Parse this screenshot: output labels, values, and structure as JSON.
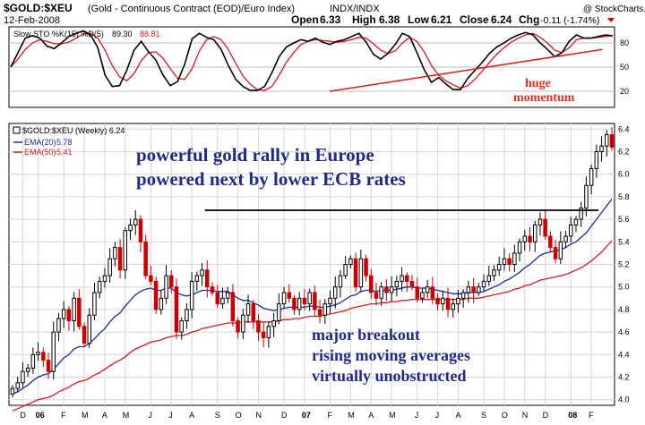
{
  "header": {
    "symbol": "$GOLD:$XEU",
    "description": "(Gold - Continuous Contract (EOD)/Euro Index)",
    "exchange": "INDX/INDX",
    "date": "12-Feb-2008",
    "open_label": "Open",
    "open": "6.33",
    "high_label": "High",
    "high": "6.38",
    "low_label": "Low",
    "low": "6.21",
    "close_label": "Close",
    "close": "6.24",
    "chg_label": "Chg",
    "chg": "-0.11 (-1.74%)",
    "watermark": "@ StockCharts.com"
  },
  "colors": {
    "up": "#000000",
    "down": "#cc0000",
    "ema20": "#1c2aa0",
    "ema50": "#e01818",
    "annotation_blue": "#1f2a8c",
    "annotation_red": "#e03020",
    "grid": "#d6d6d6",
    "sto_d": "#e01818"
  },
  "chart_data": [
    {
      "type": "line",
      "title": "Slow STO %K(15) %D(5)",
      "legend": [
        {
          "name": "Slow STO %K(15) %D(5)",
          "value": "89.30",
          "color": "#000000"
        },
        {
          "name": "%D",
          "value": "88.81",
          "color": "#e01818"
        }
      ],
      "ylim": [
        0,
        100
      ],
      "yticks": [
        20,
        50,
        80
      ],
      "reference_lines": [
        20,
        50,
        80
      ],
      "trendline": {
        "from": [
          62,
          20
        ],
        "to": [
          115,
          72
        ],
        "color": "#e01818"
      },
      "annotation": [
        "huge",
        "momentum"
      ],
      "series": [
        {
          "name": "%K",
          "values": [
            50,
            68,
            86,
            89,
            86,
            76,
            73,
            80,
            88,
            92,
            95,
            90,
            74,
            40,
            26,
            27,
            46,
            71,
            82,
            69,
            59,
            40,
            27,
            32,
            54,
            85,
            92,
            87,
            84,
            72,
            52,
            35,
            26,
            21,
            21,
            26,
            43,
            63,
            75,
            80,
            84,
            82,
            86,
            81,
            78,
            82,
            84,
            88,
            92,
            81,
            66,
            60,
            67,
            78,
            92,
            88,
            68,
            47,
            31,
            37,
            29,
            22,
            22,
            36,
            46,
            56,
            67,
            75,
            80,
            86,
            90,
            93,
            90,
            80,
            72,
            63,
            68,
            82,
            90,
            86,
            86,
            88,
            90,
            89
          ]
        },
        {
          "name": "%D",
          "values": [
            50,
            60,
            72,
            80,
            84,
            82,
            79,
            79,
            81,
            86,
            91,
            92,
            86,
            71,
            52,
            38,
            33,
            42,
            58,
            68,
            69,
            61,
            48,
            36,
            35,
            48,
            70,
            84,
            88,
            84,
            72,
            55,
            39,
            29,
            22,
            21,
            26,
            40,
            56,
            68,
            78,
            82,
            84,
            83,
            82,
            81,
            82,
            84,
            87,
            86,
            79,
            71,
            67,
            70,
            80,
            87,
            82,
            69,
            52,
            40,
            33,
            28,
            24,
            27,
            35,
            45,
            56,
            66,
            74,
            81,
            86,
            90,
            92,
            87,
            80,
            71,
            68,
            74,
            84,
            86,
            86,
            87,
            88,
            89
          ]
        }
      ]
    },
    {
      "type": "candlestick",
      "title": "$GOLD:$XEU (Weekly) 6.24",
      "legend": [
        {
          "name": "EMA(20)",
          "value": "5.78",
          "color": "#1c2aa0"
        },
        {
          "name": "EMA(50)",
          "value": "5.41",
          "color": "#e01818"
        }
      ],
      "ylim": [
        3.95,
        6.45
      ],
      "yticks": [
        4.0,
        4.2,
        4.4,
        4.6,
        4.8,
        5.0,
        5.2,
        5.4,
        5.6,
        5.8,
        6.0,
        6.2,
        6.4
      ],
      "x_ticks": [
        {
          "label": "D",
          "index": 2,
          "bold": false
        },
        {
          "label": "06",
          "index": 5,
          "bold": true
        },
        {
          "label": "F",
          "index": 10,
          "bold": false
        },
        {
          "label": "M",
          "index": 14,
          "bold": false
        },
        {
          "label": "A",
          "index": 18,
          "bold": false
        },
        {
          "label": "M",
          "index": 22,
          "bold": false
        },
        {
          "label": "J",
          "index": 27,
          "bold": false
        },
        {
          "label": "J",
          "index": 31,
          "bold": false
        },
        {
          "label": "A",
          "index": 35,
          "bold": false
        },
        {
          "label": "S",
          "index": 40,
          "bold": false
        },
        {
          "label": "O",
          "index": 44,
          "bold": false
        },
        {
          "label": "N",
          "index": 48,
          "bold": false
        },
        {
          "label": "D",
          "index": 53,
          "bold": false
        },
        {
          "label": "07",
          "index": 57,
          "bold": true
        },
        {
          "label": "F",
          "index": 62,
          "bold": false
        },
        {
          "label": "M",
          "index": 66,
          "bold": false
        },
        {
          "label": "A",
          "index": 70,
          "bold": false
        },
        {
          "label": "M",
          "index": 74,
          "bold": false
        },
        {
          "label": "J",
          "index": 79,
          "bold": false
        },
        {
          "label": "J",
          "index": 83,
          "bold": false
        },
        {
          "label": "A",
          "index": 87,
          "bold": false
        },
        {
          "label": "S",
          "index": 92,
          "bold": false
        },
        {
          "label": "O",
          "index": 96,
          "bold": false
        },
        {
          "label": "N",
          "index": 100,
          "bold": false
        },
        {
          "label": "D",
          "index": 104,
          "bold": false
        },
        {
          "label": "08",
          "index": 109,
          "bold": true
        },
        {
          "label": "F",
          "index": 113,
          "bold": false
        }
      ],
      "resistance_line": {
        "from_index": 19,
        "to_index": 117,
        "value": 5.68
      },
      "closes": [
        4.1,
        4.15,
        4.25,
        4.28,
        4.4,
        4.42,
        4.35,
        4.25,
        4.6,
        4.72,
        4.8,
        4.7,
        4.9,
        4.65,
        4.5,
        4.75,
        4.95,
        5.05,
        5.1,
        5.25,
        5.35,
        5.15,
        5.5,
        5.55,
        5.6,
        5.4,
        5.1,
        5.05,
        4.8,
        4.9,
        5.1,
        5.0,
        4.6,
        4.7,
        4.8,
        5.05,
        5.1,
        5.15,
        5.0,
        4.95,
        4.85,
        4.9,
        4.95,
        4.7,
        4.6,
        4.75,
        4.85,
        4.7,
        4.6,
        4.55,
        4.65,
        4.7,
        4.85,
        4.95,
        4.9,
        4.8,
        4.9,
        4.85,
        4.95,
        4.8,
        4.75,
        4.85,
        4.9,
        5.0,
        5.1,
        5.2,
        5.25,
        5.0,
        5.25,
        5.1,
        4.95,
        4.9,
        5.0,
        4.95,
        5.0,
        5.05,
        5.1,
        5.05,
        5.0,
        4.9,
        4.95,
        5.0,
        4.9,
        4.85,
        4.9,
        4.8,
        4.85,
        4.9,
        4.95,
        5.0,
        4.95,
        5.0,
        5.05,
        5.1,
        5.15,
        5.2,
        5.25,
        5.2,
        5.3,
        5.4,
        5.45,
        5.4,
        5.55,
        5.6,
        5.45,
        5.35,
        5.25,
        5.4,
        5.45,
        5.55,
        5.6,
        5.7,
        5.9,
        6.05,
        6.2,
        6.25,
        6.35,
        6.24
      ],
      "ema20": [
        4.05,
        4.07,
        4.1,
        4.13,
        4.17,
        4.2,
        4.22,
        4.23,
        4.27,
        4.32,
        4.37,
        4.4,
        4.45,
        4.47,
        4.47,
        4.5,
        4.54,
        4.59,
        4.63,
        4.69,
        4.74,
        4.77,
        4.83,
        4.88,
        4.93,
        4.96,
        4.98,
        4.99,
        4.97,
        4.97,
        4.99,
        4.99,
        4.95,
        4.93,
        4.92,
        4.93,
        4.95,
        4.97,
        4.97,
        4.97,
        4.96,
        4.96,
        4.96,
        4.93,
        4.9,
        4.88,
        4.88,
        4.86,
        4.84,
        4.81,
        4.8,
        4.79,
        4.8,
        4.81,
        4.82,
        4.82,
        4.82,
        4.82,
        4.83,
        4.83,
        4.82,
        4.82,
        4.83,
        4.84,
        4.86,
        4.89,
        4.92,
        4.93,
        4.96,
        4.97,
        4.97,
        4.96,
        4.97,
        4.97,
        4.97,
        4.98,
        4.99,
        5.0,
        5.0,
        4.99,
        4.99,
        4.99,
        4.98,
        4.97,
        4.96,
        4.95,
        4.94,
        4.94,
        4.94,
        4.95,
        4.95,
        4.95,
        4.96,
        4.98,
        5.0,
        5.02,
        5.05,
        5.07,
        5.1,
        5.13,
        5.17,
        5.2,
        5.24,
        5.28,
        5.3,
        5.31,
        5.32,
        5.33,
        5.35,
        5.38,
        5.4,
        5.44,
        5.48,
        5.54,
        5.6,
        5.66,
        5.72,
        5.78
      ],
      "ema50": [
        3.9,
        3.92,
        3.94,
        3.96,
        3.98,
        4.0,
        4.01,
        4.02,
        4.04,
        4.07,
        4.09,
        4.11,
        4.14,
        4.16,
        4.17,
        4.19,
        4.22,
        4.24,
        4.27,
        4.3,
        4.33,
        4.35,
        4.38,
        4.42,
        4.45,
        4.47,
        4.49,
        4.51,
        4.52,
        4.53,
        4.55,
        4.56,
        4.57,
        4.57,
        4.58,
        4.6,
        4.61,
        4.63,
        4.64,
        4.65,
        4.66,
        4.67,
        4.68,
        4.68,
        4.68,
        4.69,
        4.69,
        4.69,
        4.69,
        4.69,
        4.69,
        4.69,
        4.7,
        4.71,
        4.71,
        4.72,
        4.72,
        4.73,
        4.74,
        4.74,
        4.74,
        4.75,
        4.76,
        4.77,
        4.78,
        4.79,
        4.81,
        4.82,
        4.83,
        4.84,
        4.85,
        4.85,
        4.86,
        4.86,
        4.87,
        4.87,
        4.88,
        4.88,
        4.89,
        4.89,
        4.89,
        4.89,
        4.89,
        4.89,
        4.89,
        4.89,
        4.89,
        4.89,
        4.89,
        4.9,
        4.9,
        4.9,
        4.91,
        4.92,
        4.93,
        4.94,
        4.95,
        4.96,
        4.98,
        4.99,
        5.01,
        5.02,
        5.04,
        5.06,
        5.07,
        5.08,
        5.09,
        5.1,
        5.11,
        5.13,
        5.15,
        5.17,
        5.2,
        5.23,
        5.27,
        5.31,
        5.36,
        5.41
      ]
    }
  ],
  "annotations": {
    "headline_line1": "powerful gold rally in Europe",
    "headline_line2": "powered next by lower ECB rates",
    "note_line1": "major breakout",
    "note_line2": "rising moving averages",
    "note_line3": "virtually unobstructed"
  }
}
